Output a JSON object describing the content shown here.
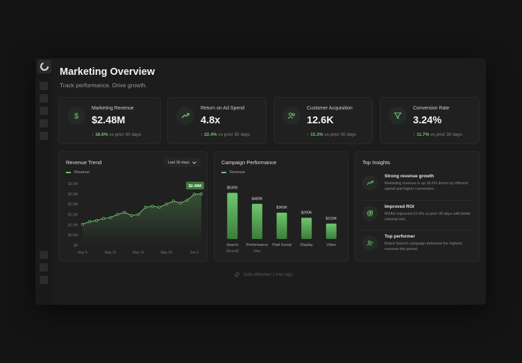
{
  "header": {
    "title": "Marketing Overview",
    "subtitle": "Track performance. Drive growth."
  },
  "kpis": [
    {
      "label": "Marketing Revenue",
      "value": "$2.48M",
      "delta": "18.6%",
      "delta_note": "vs prior 30 days",
      "icon": "dollar-icon"
    },
    {
      "label": "Return on Ad Spend",
      "value": "4.8x",
      "delta": "22.4%",
      "delta_note": "vs prior 30 days",
      "icon": "trend-up-icon"
    },
    {
      "label": "Customer Acquisition",
      "value": "12.6K",
      "delta": "15.3%",
      "delta_note": "vs prior 30 days",
      "icon": "users-icon"
    },
    {
      "label": "Conversion Rate",
      "value": "3.24%",
      "delta": "11.7%",
      "delta_note": "vs prior 30 days",
      "icon": "funnel-icon"
    }
  ],
  "revenue_panel": {
    "title": "Revenue Trend",
    "range_label": "Last 30 days",
    "legend": "Revenue",
    "callout": "$2.48M"
  },
  "campaign_panel": {
    "title": "Campaign Performance",
    "legend": "Revenue"
  },
  "insights_panel": {
    "title": "Top Insights",
    "items": [
      {
        "title": "Strong revenue growth",
        "desc": "Marketing revenue is up 18.6% driven by efficient spend and higher conversion.",
        "icon": "trend-up-icon"
      },
      {
        "title": "Improved ROI",
        "desc": "ROAS improved 22.4% vs prior 30 days with better channel mix.",
        "icon": "target-icon"
      },
      {
        "title": "Top performer",
        "desc": "Brand Search campaign delivered the highest revenue this period.",
        "icon": "user-check-icon"
      }
    ]
  },
  "footer": {
    "text": "Data refreshed 1 hour ago",
    "icon": "rocket-icon"
  },
  "colors": {
    "accent": "#6ec86e",
    "background": "#141414",
    "card": "#202020"
  },
  "chart_data": [
    {
      "type": "line",
      "title": "Revenue Trend",
      "legend": [
        "Revenue"
      ],
      "y_ticks": [
        "$0",
        "$0.5M",
        "$1.0M",
        "$1.5M",
        "$2.0M",
        "$2.5M",
        "$3.0M"
      ],
      "ylim": [
        0,
        3.0
      ],
      "x_ticks": [
        "May 6",
        "May 12",
        "May 19",
        "May 26",
        "Jun 2"
      ],
      "x_tick_pos": [
        0,
        4,
        8,
        12,
        16
      ],
      "series": [
        {
          "name": "Revenue",
          "values": [
            1.02,
            1.15,
            1.2,
            1.3,
            1.35,
            1.5,
            1.6,
            1.45,
            1.5,
            1.85,
            1.9,
            1.85,
            2.0,
            2.15,
            2.05,
            2.2,
            2.48,
            2.5
          ]
        }
      ],
      "callout": "$2.48M"
    },
    {
      "type": "bar",
      "title": "Campaign Performance",
      "legend": [
        "Revenue"
      ],
      "categories": [
        [
          "Search",
          "(Brand)"
        ],
        [
          "Performance",
          "Max"
        ],
        [
          "Paid Social"
        ],
        [
          "Display"
        ],
        [
          "Video"
        ]
      ],
      "values": [
        630,
        480,
        360,
        290,
        210
      ],
      "value_labels": [
        "$630K",
        "$480K",
        "$360K",
        "$290K",
        "$210K"
      ],
      "ylim": [
        0,
        700
      ]
    }
  ]
}
